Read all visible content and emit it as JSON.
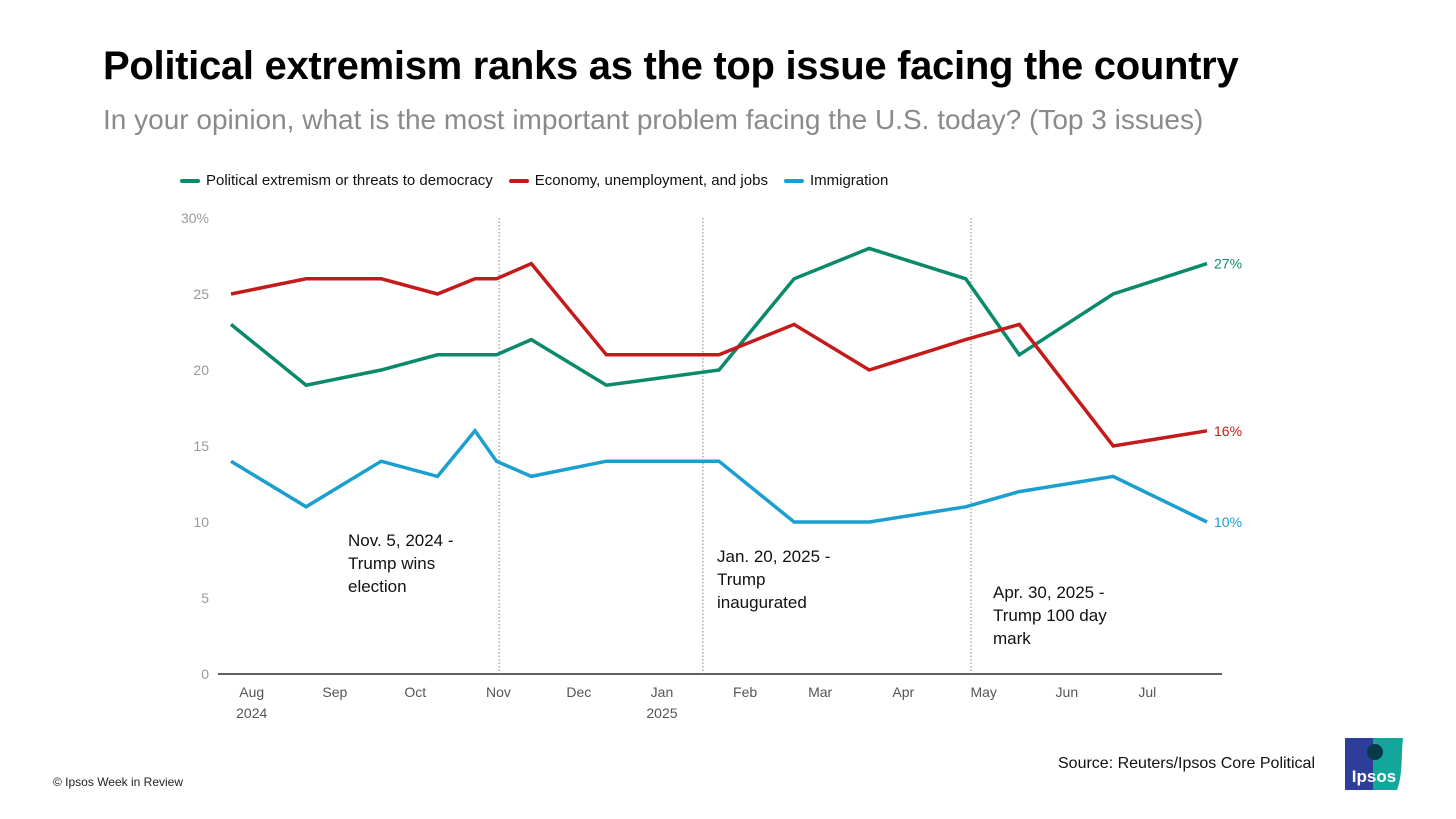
{
  "title": "Political extremism ranks as the top issue facing the country",
  "subtitle": "In your opinion, what is the most important problem facing the U.S. today? (Top 3 issues)",
  "footer": "© Ipsos Week in Review",
  "source": "Source: Reuters/Ipsos Core Political",
  "logo_text": "Ipsos",
  "chart_data": {
    "type": "line",
    "title": "Political extremism ranks as the top issue facing the country",
    "xlabel": "",
    "ylabel": "",
    "ylim": [
      0,
      30
    ],
    "yticks": [
      0,
      5,
      10,
      15,
      20,
      25,
      30
    ],
    "ytick_labels": [
      "0",
      "5",
      "10",
      "15",
      "20",
      "25",
      "30%"
    ],
    "xticks": [
      {
        "date": "2024-08-01",
        "label": "Aug",
        "sub": "2024"
      },
      {
        "date": "2024-09-01",
        "label": "Sep",
        "sub": ""
      },
      {
        "date": "2024-10-01",
        "label": "Oct",
        "sub": ""
      },
      {
        "date": "2024-11-01",
        "label": "Nov",
        "sub": ""
      },
      {
        "date": "2024-12-01",
        "label": "Dec",
        "sub": ""
      },
      {
        "date": "2025-01-01",
        "label": "Jan",
        "sub": "2025"
      },
      {
        "date": "2025-02-01",
        "label": "Feb",
        "sub": ""
      },
      {
        "date": "2025-03-01",
        "label": "Mar",
        "sub": ""
      },
      {
        "date": "2025-04-01",
        "label": "Apr",
        "sub": ""
      },
      {
        "date": "2025-05-01",
        "label": "May",
        "sub": ""
      },
      {
        "date": "2025-06-01",
        "label": "Jun",
        "sub": ""
      },
      {
        "date": "2025-07-01",
        "label": "Jul",
        "sub": ""
      }
    ],
    "x": [
      "2024-07-28",
      "2024-08-25",
      "2024-09-22",
      "2024-10-13",
      "2024-10-27",
      "2024-11-04",
      "2024-11-17",
      "2024-12-15",
      "2025-01-26",
      "2025-02-23",
      "2025-03-23",
      "2025-04-28",
      "2025-05-18",
      "2025-06-22",
      "2025-07-27"
    ],
    "legend_position": "top-left",
    "grid": false,
    "series": [
      {
        "name": "Political extremism or threats to democracy",
        "color": "#0a8a6a",
        "values": [
          23,
          19,
          20,
          21,
          21,
          21,
          22,
          19,
          20,
          26,
          28,
          26,
          21,
          25,
          27
        ],
        "end_label": "27%"
      },
      {
        "name": "Economy, unemployment, and jobs",
        "color": "#c41a1a",
        "values": [
          25,
          26,
          26,
          25,
          26,
          26,
          27,
          21,
          21,
          23,
          20,
          22,
          23,
          15,
          16
        ],
        "end_label": "16%"
      },
      {
        "name": "Immigration",
        "color": "#1a9fd0",
        "values": [
          14,
          11,
          14,
          13,
          16,
          14,
          13,
          14,
          14,
          10,
          10,
          11,
          12,
          13,
          10
        ],
        "end_label": "10%"
      }
    ],
    "annotations": [
      {
        "date": "2024-11-05",
        "lines": [
          "Nov. 5, 2024 -",
          "Trump wins",
          "election"
        ]
      },
      {
        "date": "2025-01-20",
        "lines": [
          "Jan. 20, 2025 -",
          "Trump",
          "inaugurated"
        ]
      },
      {
        "date": "2025-04-30",
        "lines": [
          "Apr. 30, 2025 -",
          "Trump 100 day",
          "mark"
        ]
      }
    ]
  }
}
